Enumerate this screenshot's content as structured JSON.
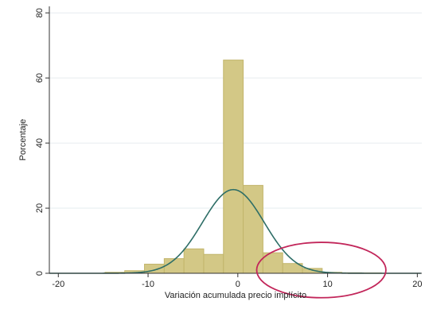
{
  "chart_data": {
    "type": "bar",
    "xlabel": "Variación acumulada precio implícito",
    "ylabel": "Porcentaje",
    "xlim": [
      -21,
      20.5
    ],
    "ylim": [
      0,
      82
    ],
    "x_ticks": [
      -20,
      -10,
      0,
      10,
      20
    ],
    "y_ticks": [
      0,
      20,
      40,
      60,
      80
    ],
    "grid": "horizontal",
    "bin_width": 2.2,
    "bins": [
      {
        "start": -14.8,
        "end": -12.6,
        "value": 0.3
      },
      {
        "start": -12.6,
        "end": -10.4,
        "value": 0.8
      },
      {
        "start": -10.4,
        "end": -8.2,
        "value": 2.8
      },
      {
        "start": -8.2,
        "end": -6.0,
        "value": 4.5
      },
      {
        "start": -6.0,
        "end": -3.8,
        "value": 7.5
      },
      {
        "start": -3.8,
        "end": -1.6,
        "value": 5.8
      },
      {
        "start": -1.6,
        "end": 0.6,
        "value": 65.5
      },
      {
        "start": 0.6,
        "end": 2.8,
        "value": 27.0
      },
      {
        "start": 2.8,
        "end": 5.0,
        "value": 6.3
      },
      {
        "start": 5.0,
        "end": 7.2,
        "value": 3.0
      },
      {
        "start": 7.2,
        "end": 9.4,
        "value": 1.5
      },
      {
        "start": 9.4,
        "end": 11.6,
        "value": 0.3
      },
      {
        "start": 11.6,
        "end": 13.8,
        "value": 0.15
      },
      {
        "start": 13.8,
        "end": 16.0,
        "value": 0.1
      }
    ],
    "normal_curve": {
      "mean": -0.5,
      "sd": 3.45,
      "peak": 25.7
    },
    "annotation": {
      "type": "ellipse",
      "cx": 9.3,
      "cy": 1.0,
      "rx": 7.2,
      "ry": 8.5
    },
    "colors": {
      "bar_fill": "#d3c886",
      "bar_stroke": "#c2b56b",
      "curve": "#2e6e67",
      "ellipse": "#c2265a",
      "grid": "#e6ecef",
      "axis": "#333333"
    }
  }
}
